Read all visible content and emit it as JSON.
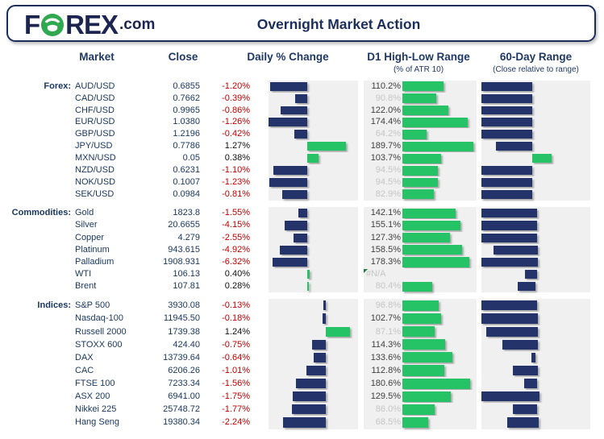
{
  "header": {
    "logo": {
      "f": "F",
      "rex": "REX",
      "tld": ".com",
      "o_icon": "bull-in-circle-icon",
      "green": "#2fa84f",
      "navy": "#1b2550"
    },
    "title": "Overnight Market Action"
  },
  "columns": {
    "market": "Market",
    "close": "Close",
    "daily": "Daily % Change",
    "d1": "D1 High-Low Range",
    "d1_sub": "(% of ATR 10)",
    "range60": "60-Day Range",
    "range60_sub": "(Close relative to range)"
  },
  "colors": {
    "navy_bar": "#24346b",
    "green_bar": "#26c366",
    "negative_text": "#c00000",
    "positive_text": "#111111",
    "header_text": "#1f3864",
    "row_text": "#17365d",
    "panel_bg": "#f0f0f0",
    "d1_label_strong": "#3f3f3f",
    "d1_label_weak": "#c5c5c5"
  },
  "chart_data": {
    "type": "table",
    "notes": "Bars: Daily % Change diverging bar (navy=negative, green=positive); D1 High-Low Range green bar scaled to 190%=full; 60-Day Range floating bar, close position within 60-day range (r60 start/end are % of panel width).",
    "sections": [
      {
        "label": "Forex:",
        "daily_axis_pct": 43.2,
        "daily_scale_pct_per_unit": 34.2,
        "rows": [
          {
            "market": "AUD/USD",
            "close": "0.6855",
            "change": "-1.20%",
            "change_value": -1.2,
            "d1": "110.2%",
            "d1_value": 110.2,
            "d1_strong": true,
            "r60": {
              "start": 0,
              "end": 46.7,
              "color": "navy"
            }
          },
          {
            "market": "CAD/USD",
            "close": "0.7662",
            "change": "-0.39%",
            "change_value": -0.39,
            "d1": "90.8%",
            "d1_value": 90.8,
            "d1_strong": false,
            "r60": {
              "start": 0,
              "end": 46.7,
              "color": "navy"
            }
          },
          {
            "market": "CHF/USD",
            "close": "0.9965",
            "change": "-0.86%",
            "change_value": -0.86,
            "d1": "122.0%",
            "d1_value": 122.0,
            "d1_strong": true,
            "r60": {
              "start": 0,
              "end": 46.7,
              "color": "navy"
            }
          },
          {
            "market": "EUR/USD",
            "close": "1.0380",
            "change": "-1.26%",
            "change_value": -1.26,
            "d1": "174.4%",
            "d1_value": 174.4,
            "d1_strong": true,
            "r60": {
              "start": 0,
              "end": 46.7,
              "color": "navy"
            }
          },
          {
            "market": "GBP/USD",
            "close": "1.2196",
            "change": "-0.42%",
            "change_value": -0.42,
            "d1": "64.2%",
            "d1_value": 64.2,
            "d1_strong": false,
            "r60": {
              "start": 0,
              "end": 46.7,
              "color": "navy"
            }
          },
          {
            "market": "JPY/USD",
            "close": "0.7786",
            "change": "1.27%",
            "change_value": 1.27,
            "d1": "189.7%",
            "d1_value": 189.7,
            "d1_strong": true,
            "r60": {
              "start": 13.3,
              "end": 46.7,
              "color": "navy"
            }
          },
          {
            "market": "MXN/USD",
            "close": "0.05",
            "change": "0.38%",
            "change_value": 0.38,
            "d1": "103.7%",
            "d1_value": 103.7,
            "d1_strong": true,
            "r60": {
              "start": 46.7,
              "end": 64.7,
              "color": "green"
            }
          },
          {
            "market": "NZD/USD",
            "close": "0.6231",
            "change": "-1.10%",
            "change_value": -1.1,
            "d1": "94.5%",
            "d1_value": 94.5,
            "d1_strong": false,
            "r60": {
              "start": 0,
              "end": 46.7,
              "color": "navy"
            }
          },
          {
            "market": "NOK/USD",
            "close": "0.1007",
            "change": "-1.23%",
            "change_value": -1.23,
            "d1": "94.5%",
            "d1_value": 94.5,
            "d1_strong": false,
            "r60": {
              "start": 0,
              "end": 46.7,
              "color": "navy"
            }
          },
          {
            "market": "SEK/USD",
            "close": "0.0984",
            "change": "-0.81%",
            "change_value": -0.81,
            "d1": "82.9%",
            "d1_value": 82.9,
            "d1_strong": false,
            "r60": {
              "start": 0,
              "end": 46.7,
              "color": "navy"
            }
          }
        ]
      },
      {
        "label": "Commodities:",
        "daily_axis_pct": 43.2,
        "daily_scale_pct_per_unit": 6.13,
        "rows": [
          {
            "market": "Gold",
            "close": "1823.8",
            "change": "-1.55%",
            "change_value": -1.55,
            "d1": "142.1%",
            "d1_value": 142.1,
            "d1_strong": true,
            "r60": {
              "start": 0,
              "end": 51,
              "color": "navy"
            }
          },
          {
            "market": "Silver",
            "close": "20.6655",
            "change": "-4.15%",
            "change_value": -4.15,
            "d1": "155.1%",
            "d1_value": 155.1,
            "d1_strong": true,
            "r60": {
              "start": 0,
              "end": 51,
              "color": "navy"
            }
          },
          {
            "market": "Copper",
            "close": "4.279",
            "change": "-2.55%",
            "change_value": -2.55,
            "d1": "127.3%",
            "d1_value": 127.3,
            "d1_strong": true,
            "r60": {
              "start": 0,
              "end": 51,
              "color": "navy"
            }
          },
          {
            "market": "Platinum",
            "close": "943.615",
            "change": "-4.92%",
            "change_value": -4.92,
            "d1": "158.5%",
            "d1_value": 158.5,
            "d1_strong": true,
            "r60": {
              "start": 11,
              "end": 52,
              "color": "navy"
            }
          },
          {
            "market": "Palladium",
            "close": "1908.931",
            "change": "-6.32%",
            "change_value": -6.32,
            "d1": "178.3%",
            "d1_value": 178.3,
            "d1_strong": true,
            "r60": {
              "start": 0,
              "end": 52,
              "color": "navy"
            }
          },
          {
            "market": "WTI",
            "close": "106.13",
            "change": "0.40%",
            "change_value": 0.4,
            "d1": "#N/A",
            "d1_value": null,
            "d1_error": true,
            "d1_strong": false,
            "r60": {
              "start": 40,
              "end": 51,
              "color": "navy"
            }
          },
          {
            "market": "Brent",
            "close": "107.81",
            "change": "0.28%",
            "change_value": 0.28,
            "d1": "80.4%",
            "d1_value": 80.4,
            "d1_strong": false,
            "r60": {
              "start": 33,
              "end": 49.5,
              "color": "navy"
            }
          }
        ]
      },
      {
        "label": "Indices:",
        "daily_axis_pct": 64.4,
        "daily_scale_pct_per_unit": 21.6,
        "rows": [
          {
            "market": "S&P 500",
            "close": "3930.08",
            "change": "-0.13%",
            "change_value": -0.13,
            "d1": "96.8%",
            "d1_value": 96.8,
            "d1_strong": false,
            "r60": {
              "start": 0,
              "end": 51,
              "color": "navy"
            }
          },
          {
            "market": "Nasdaq-100",
            "close": "11945.50",
            "change": "-0.18%",
            "change_value": -0.18,
            "d1": "102.7%",
            "d1_value": 102.7,
            "d1_strong": true,
            "r60": {
              "start": 0,
              "end": 52,
              "color": "navy"
            }
          },
          {
            "market": "Russell 2000",
            "close": "1739.38",
            "change": "1.24%",
            "change_value": 1.24,
            "d1": "87.1%",
            "d1_value": 87.1,
            "d1_strong": false,
            "r60": {
              "start": 4.5,
              "end": 52,
              "color": "navy"
            }
          },
          {
            "market": "STOXX 600",
            "close": "424.40",
            "change": "-0.75%",
            "change_value": -0.75,
            "d1": "114.3%",
            "d1_value": 114.3,
            "d1_strong": true,
            "r60": {
              "start": 19,
              "end": 51.5,
              "color": "navy"
            }
          },
          {
            "market": "DAX",
            "close": "13739.64",
            "change": "-0.64%",
            "change_value": -0.64,
            "d1": "133.6%",
            "d1_value": 133.6,
            "d1_strong": true,
            "r60": {
              "start": 46,
              "end": 50,
              "color": "navy"
            }
          },
          {
            "market": "CAC",
            "close": "6206.26",
            "change": "-1.01%",
            "change_value": -1.01,
            "d1": "112.8%",
            "d1_value": 112.8,
            "d1_strong": true,
            "r60": {
              "start": 29,
              "end": 51.5,
              "color": "navy"
            }
          },
          {
            "market": "FTSE 100",
            "close": "7233.34",
            "change": "-1.56%",
            "change_value": -1.56,
            "d1": "180.6%",
            "d1_value": 180.6,
            "d1_strong": true,
            "r60": {
              "start": 39,
              "end": 51,
              "color": "navy"
            }
          },
          {
            "market": "ASX 200",
            "close": "6941.00",
            "change": "-1.75%",
            "change_value": -1.75,
            "d1": "129.5%",
            "d1_value": 129.5,
            "d1_strong": true,
            "r60": {
              "start": 0,
              "end": 53.5,
              "color": "navy"
            }
          },
          {
            "market": "Nikkei 225",
            "close": "25748.72",
            "change": "-1.77%",
            "change_value": -1.77,
            "d1": "86.0%",
            "d1_value": 86.0,
            "d1_strong": false,
            "r60": {
              "start": 29,
              "end": 51,
              "color": "navy"
            }
          },
          {
            "market": "Hang Seng",
            "close": "19380.34",
            "change": "-2.24%",
            "change_value": -2.24,
            "d1": "68.5%",
            "d1_value": 68.5,
            "d1_strong": false,
            "r60": {
              "start": 24,
              "end": 52.5,
              "color": "navy"
            }
          }
        ]
      }
    ],
    "d1_bar": {
      "left_pct": 34.3,
      "pct_width_per_unit": 0.3316
    }
  }
}
